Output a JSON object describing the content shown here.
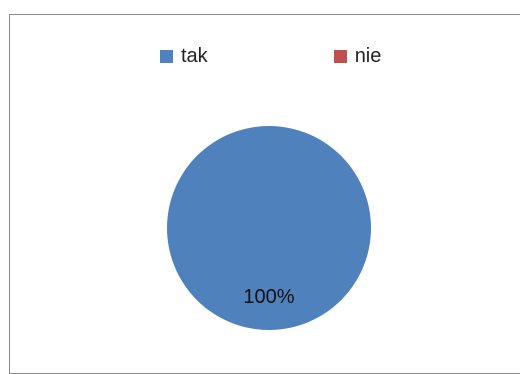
{
  "chart_data": {
    "type": "pie",
    "title": "",
    "legend_position": "top",
    "categories": [
      "tak",
      "nie"
    ],
    "values": [
      100,
      0
    ],
    "colors": [
      "#4f81bd",
      "#c0504d"
    ],
    "data_labels": [
      "100%",
      ""
    ]
  }
}
